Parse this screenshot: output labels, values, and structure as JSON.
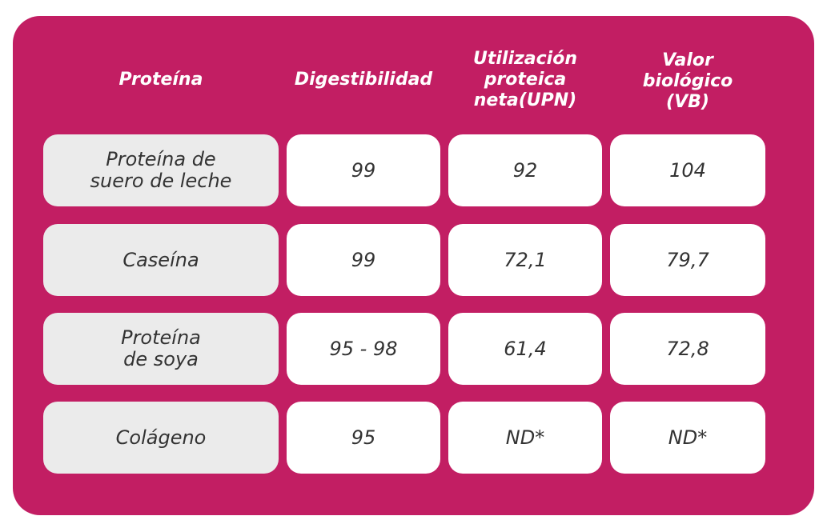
{
  "colors": {
    "panel": "#c21e63",
    "name_cell": "#ebebeb",
    "value_cell": "#ffffff",
    "header_text": "#ffffff",
    "cell_text": "#333333"
  },
  "table": {
    "headers": [
      "Proteína",
      "Digestibilidad",
      "Utilización\nproteica\nneta(UPN)",
      "Valor\nbiológico\n(VB)"
    ],
    "rows": [
      {
        "protein": "Proteína de\nsuero de leche",
        "digestibility": "99",
        "upn": "92",
        "vb": "104"
      },
      {
        "protein": "Caseína",
        "digestibility": "99",
        "upn": "72,1",
        "vb": "79,7"
      },
      {
        "protein": "Proteína\nde soya",
        "digestibility": "95 - 98",
        "upn": "61,4",
        "vb": "72,8"
      },
      {
        "protein": "Colágeno",
        "digestibility": "95",
        "upn": "ND*",
        "vb": "ND*"
      }
    ]
  }
}
